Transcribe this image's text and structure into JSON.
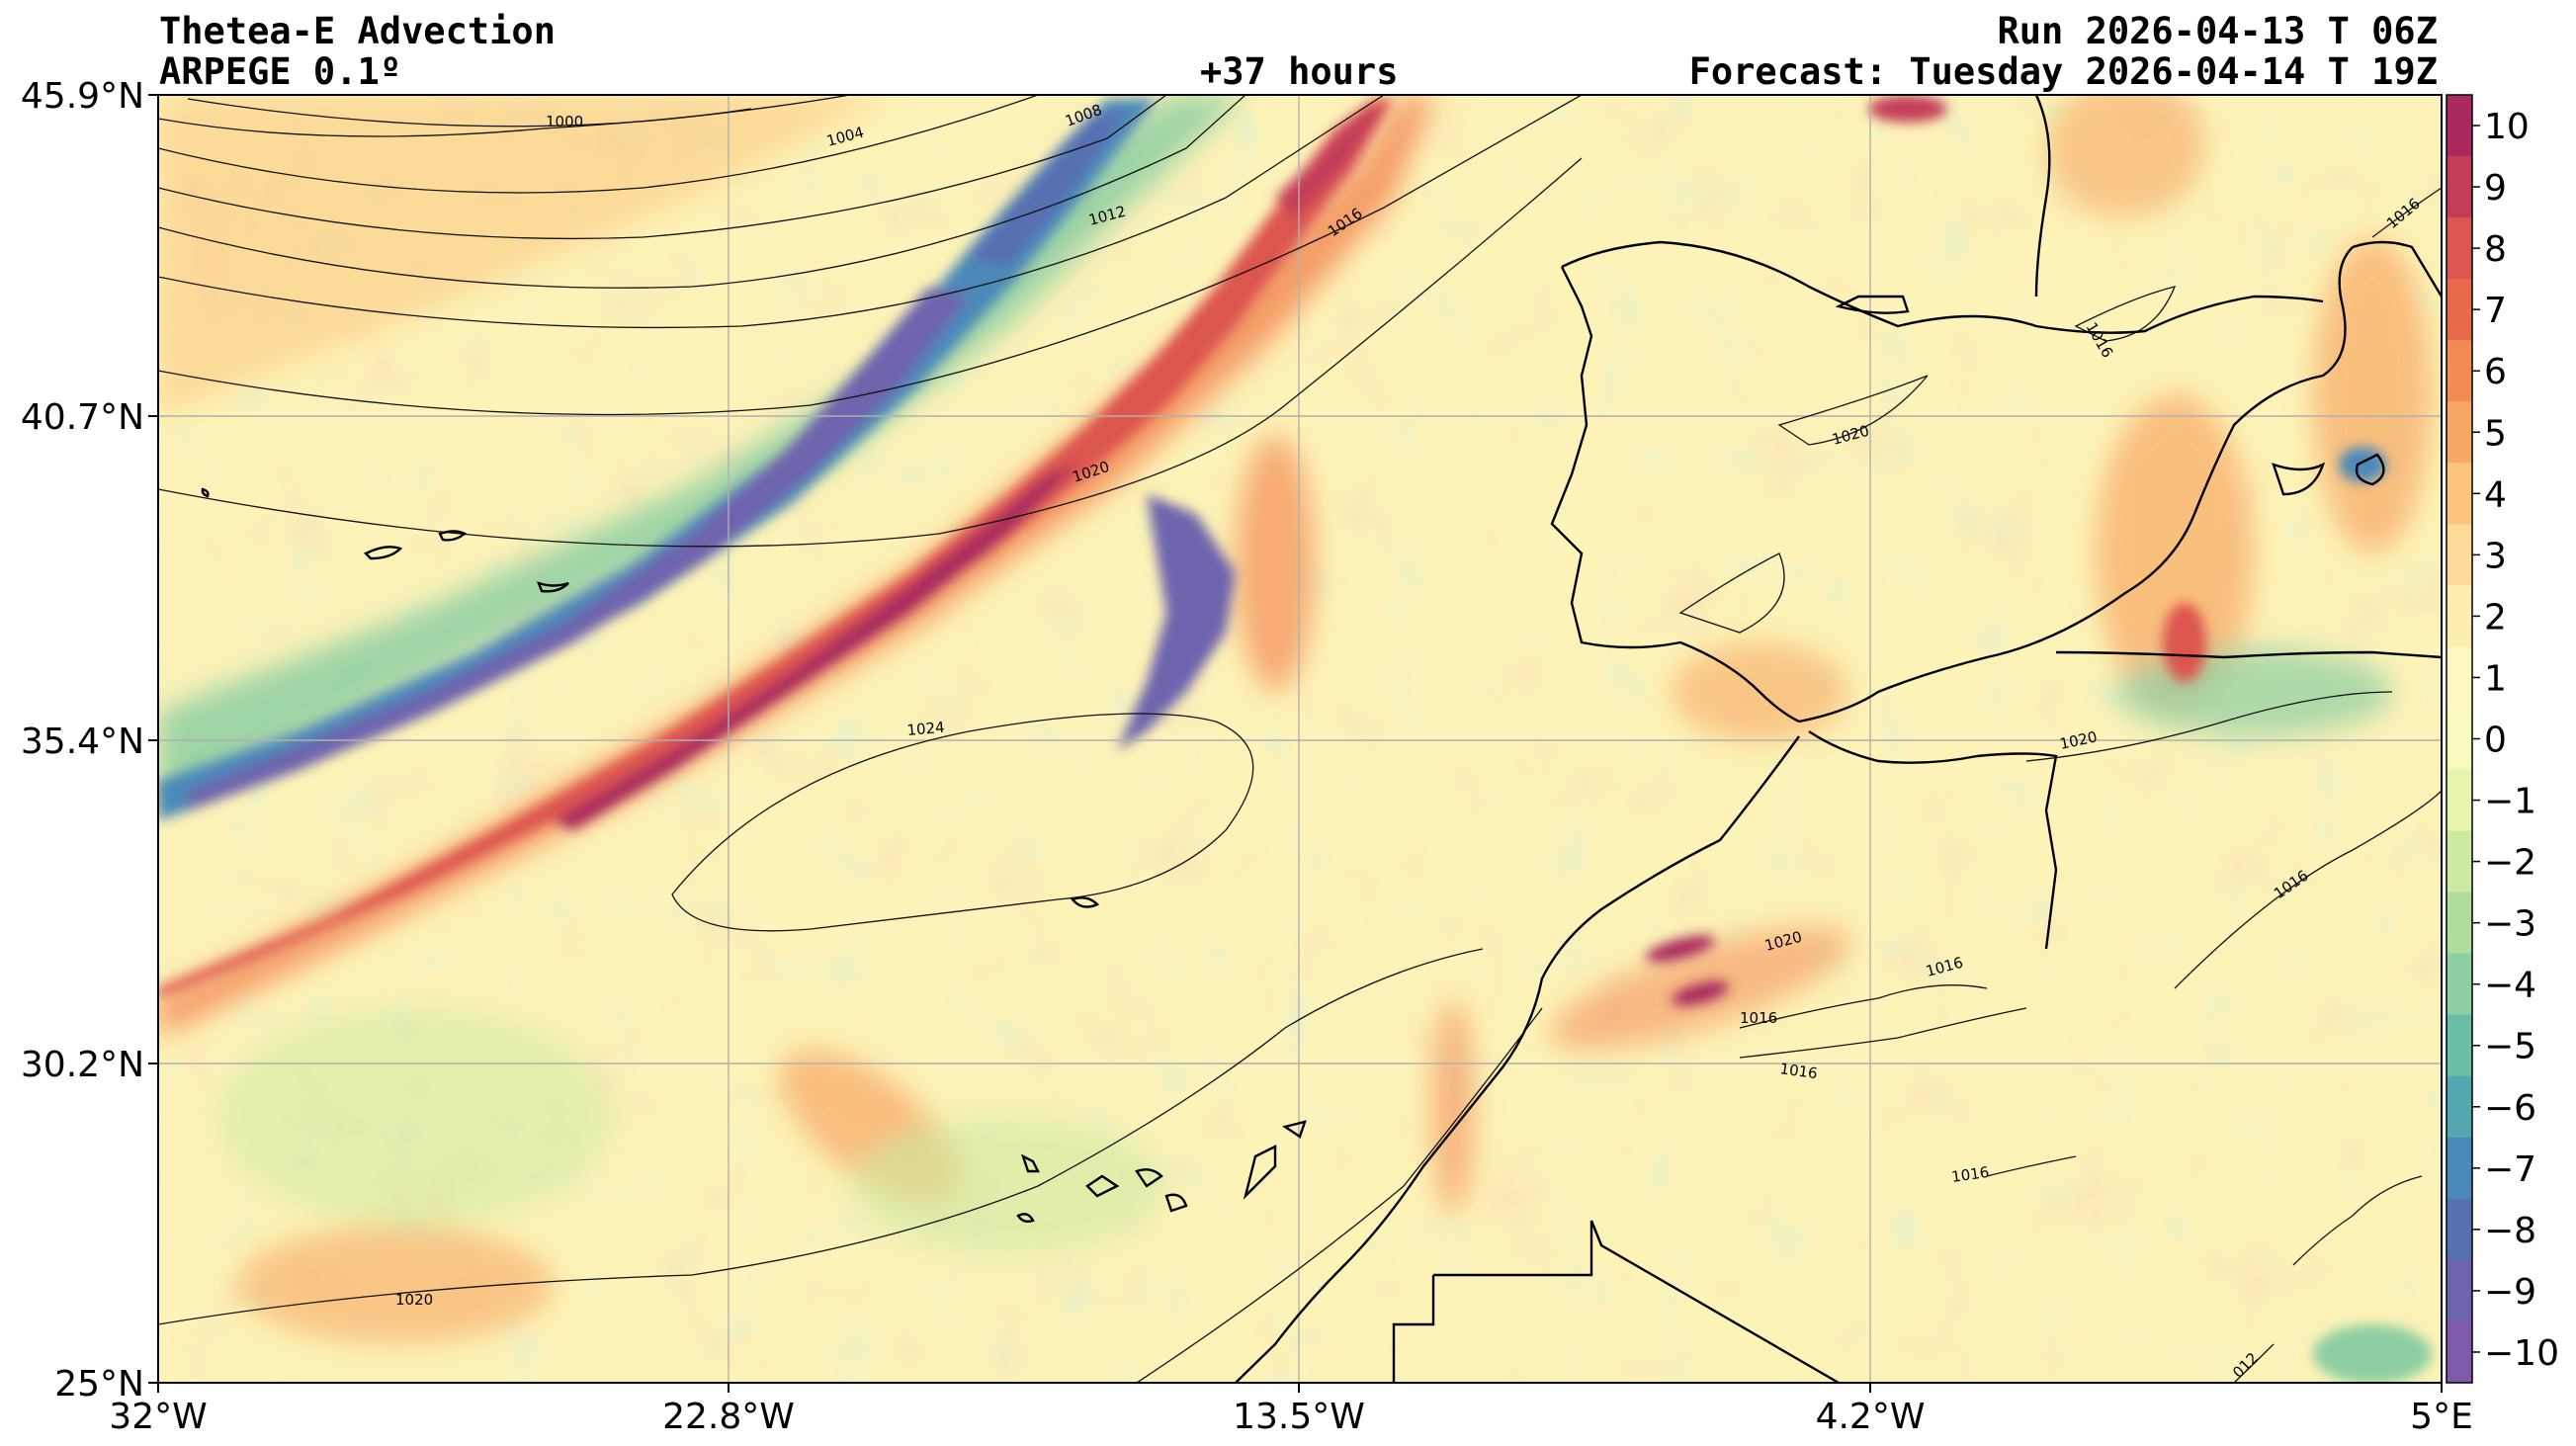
{
  "header": {
    "title": "Thetea-E Advection",
    "model": "ARPEGE 0.1º",
    "lead": "+37 hours",
    "run": "Run 2026-04-13 T 06Z",
    "forecast": "Forecast: Tuesday 2026-04-14 T 19Z"
  },
  "map": {
    "lat_labels": [
      "45.9°N",
      "40.7°N",
      "35.4°N",
      "30.2°N",
      "25°N"
    ],
    "lon_labels": [
      "32°W",
      "22.8°W",
      "13.5°W",
      "4.2°W",
      "5°E"
    ],
    "isobar_labels": [
      "1000",
      "1004",
      "1008",
      "1012",
      "1016",
      "1020",
      "1024",
      "1020",
      "1016",
      "1020",
      "1020",
      "1016",
      "1016",
      "1016",
      "1016",
      "1016",
      "1020",
      "1016",
      "1016",
      "012"
    ]
  },
  "colorbar": {
    "ticks": [
      "10",
      "9",
      "8",
      "7",
      "6",
      "5",
      "4",
      "3",
      "2",
      "1",
      "0",
      "−1",
      "−2",
      "−3",
      "−4",
      "−5",
      "−6",
      "−7",
      "−8",
      "−9",
      "−10"
    ],
    "colors": [
      "#a82a5e",
      "#c43d58",
      "#dc5550",
      "#ea6a4c",
      "#f38b55",
      "#f7a864",
      "#fbc57d",
      "#fcdc98",
      "#fdedae",
      "#fdf8c0",
      "#f7f9bd",
      "#e6f4ae",
      "#cdeaa1",
      "#aedd9e",
      "#8ccfa2",
      "#6bbea6",
      "#54a6b0",
      "#4b89b9",
      "#5670b2",
      "#6e63ad",
      "#7e5aa8"
    ]
  }
}
